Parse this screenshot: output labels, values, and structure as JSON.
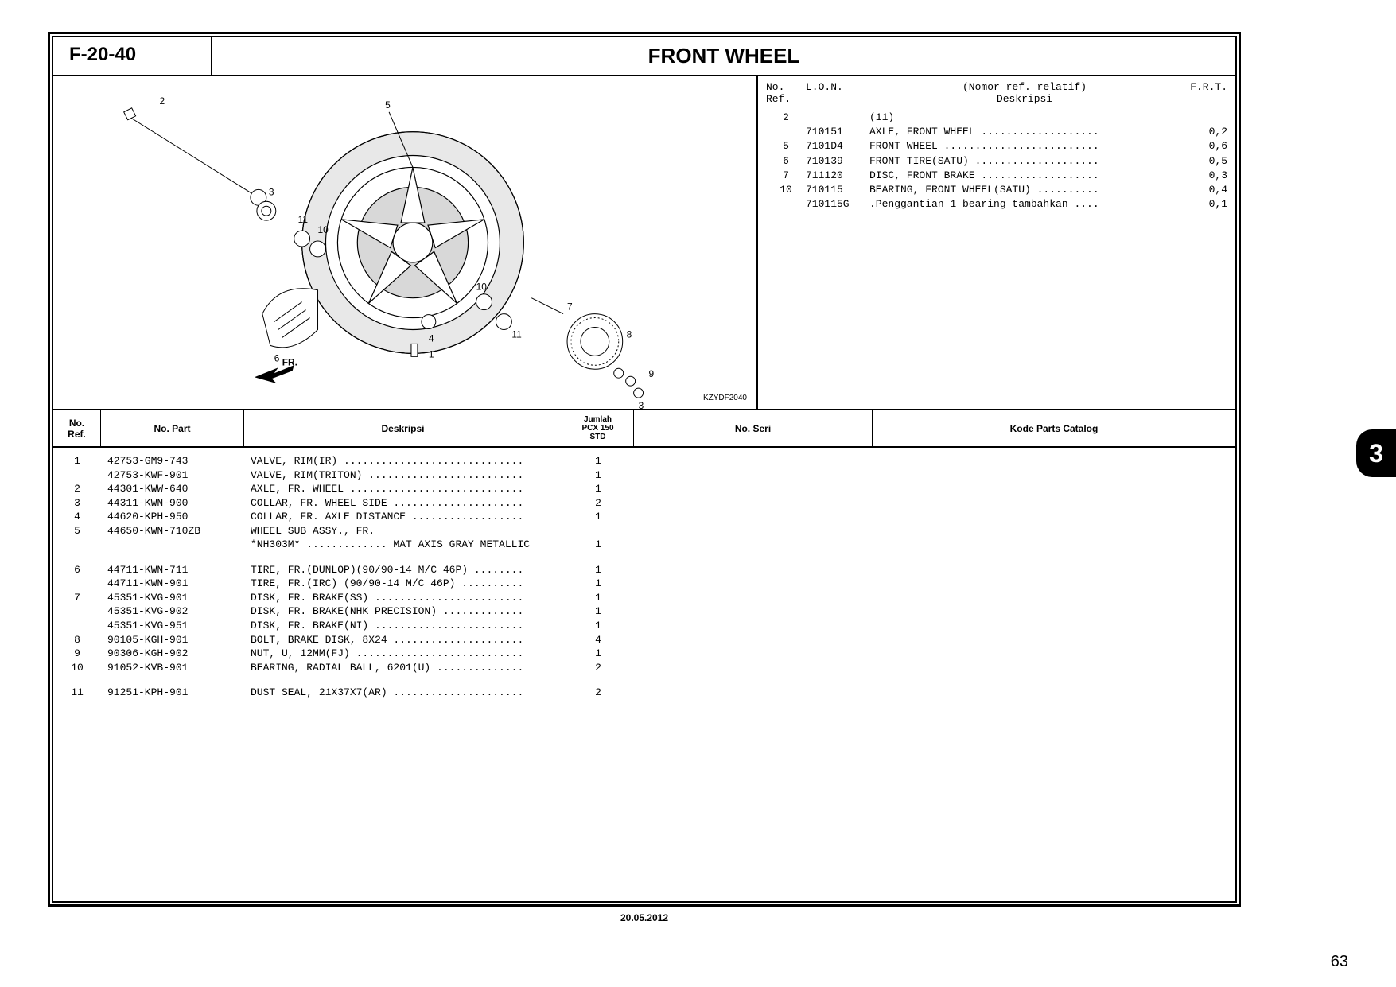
{
  "header": {
    "section_code": "F-20-40",
    "section_title": "FRONT WHEEL"
  },
  "diagram": {
    "code": "KZYDF2040",
    "fr_label": "FR.",
    "callouts": [
      "1",
      "2",
      "3",
      "4",
      "5",
      "6",
      "7",
      "8",
      "9",
      "10",
      "11"
    ]
  },
  "ref_panel": {
    "header": {
      "no_ref": "No.\nRef.",
      "lon": "L.O.N.",
      "note": "(Nomor ref. relatif)",
      "deskripsi": "Deskripsi",
      "frt": "F.R.T."
    },
    "rows": [
      {
        "ref": "2",
        "lon": "",
        "desc": "(11)",
        "frt": ""
      },
      {
        "ref": "",
        "lon": "710151",
        "desc": "AXLE, FRONT WHEEL ...................",
        "frt": "0,2"
      },
      {
        "ref": "5",
        "lon": "7101D4",
        "desc": "FRONT WHEEL .........................",
        "frt": "0,6"
      },
      {
        "ref": "6",
        "lon": "710139",
        "desc": "FRONT TIRE(SATU) ....................",
        "frt": "0,5"
      },
      {
        "ref": "7",
        "lon": "711120",
        "desc": "DISC, FRONT BRAKE ...................",
        "frt": "0,3"
      },
      {
        "ref": "10",
        "lon": "710115",
        "desc": "BEARING, FRONT WHEEL(SATU) ..........",
        "frt": "0,4"
      },
      {
        "ref": "",
        "lon": "710115G",
        "desc": ".Penggantian 1 bearing tambahkan ....",
        "frt": "0,1"
      }
    ]
  },
  "table": {
    "headers": {
      "ref": "No.\nRef.",
      "part": "No. Part",
      "desc": "Deskripsi",
      "qty": "Jumlah\nPCX 150\nSTD",
      "seri": "No. Seri",
      "kode": "Kode Parts Catalog"
    },
    "rows": [
      {
        "ref": "1",
        "part": "42753-GM9-743",
        "desc": "VALVE, RIM(IR) .............................",
        "qty": "1"
      },
      {
        "ref": "",
        "part": "42753-KWF-901",
        "desc": "VALVE, RIM(TRITON) .........................",
        "qty": "1"
      },
      {
        "ref": "2",
        "part": "44301-KWW-640",
        "desc": "AXLE, FR. WHEEL ............................",
        "qty": "1"
      },
      {
        "ref": "3",
        "part": "44311-KWN-900",
        "desc": "COLLAR, FR. WHEEL SIDE .....................",
        "qty": "2"
      },
      {
        "ref": "4",
        "part": "44620-KPH-950",
        "desc": "COLLAR, FR. AXLE DISTANCE ..................",
        "qty": "1"
      },
      {
        "ref": "5",
        "part": "44650-KWN-710ZB",
        "desc": "WHEEL SUB ASSY., FR.",
        "qty": ""
      },
      {
        "ref": "",
        "part": "",
        "desc": "*NH303M* ............. MAT AXIS GRAY METALLIC",
        "qty": "1"
      },
      {
        "spacer": true
      },
      {
        "ref": "6",
        "part": "44711-KWN-711",
        "desc": "TIRE, FR.(DUNLOP)(90/90-14 M/C 46P) ........",
        "qty": "1"
      },
      {
        "ref": "",
        "part": "44711-KWN-901",
        "desc": "TIRE, FR.(IRC) (90/90-14 M/C 46P) ..........",
        "qty": "1"
      },
      {
        "ref": "7",
        "part": "45351-KVG-901",
        "desc": "DISK, FR. BRAKE(SS) ........................",
        "qty": "1"
      },
      {
        "ref": "",
        "part": "45351-KVG-902",
        "desc": "DISK, FR. BRAKE(NHK PRECISION) .............",
        "qty": "1"
      },
      {
        "ref": "",
        "part": "45351-KVG-951",
        "desc": "DISK, FR. BRAKE(NI) ........................",
        "qty": "1"
      },
      {
        "ref": "8",
        "part": "90105-KGH-901",
        "desc": "BOLT, BRAKE DISK, 8X24 .....................",
        "qty": "4"
      },
      {
        "ref": "9",
        "part": "90306-KGH-902",
        "desc": "NUT, U, 12MM(FJ) ...........................",
        "qty": "1"
      },
      {
        "ref": "10",
        "part": "91052-KVB-901",
        "desc": "BEARING, RADIAL BALL, 6201(U) ..............",
        "qty": "2"
      },
      {
        "spacer": true
      },
      {
        "ref": "11",
        "part": "91251-KPH-901",
        "desc": "DUST SEAL, 21X37X7(AR) .....................",
        "qty": "2"
      }
    ]
  },
  "footer": {
    "date": "20.05.2012",
    "page": "63",
    "tab": "3"
  }
}
